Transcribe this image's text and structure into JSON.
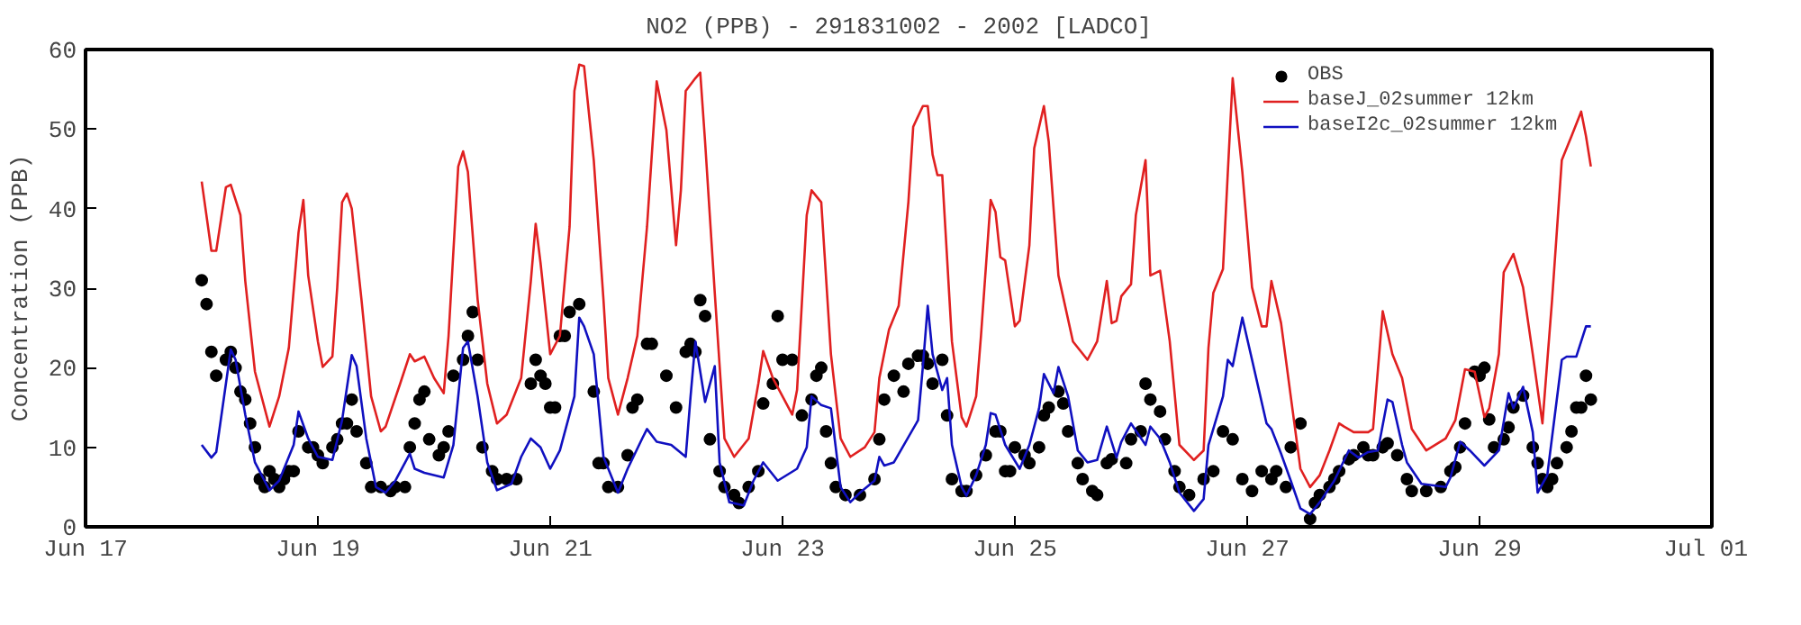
{
  "chart_data": {
    "type": "line",
    "title": "NO2 (PPB) - 291831002 - 2002 [LADCO]",
    "ylabel": "Concentration (PPB)",
    "xlim": [
      "2002-06-17",
      "2002-07-01"
    ],
    "xticks": [
      {
        "value": "2002-06-17",
        "label": "Jun 17"
      },
      {
        "value": "2002-06-19",
        "label": "Jun 19"
      },
      {
        "value": "2002-06-21",
        "label": "Jun 21"
      },
      {
        "value": "2002-06-23",
        "label": "Jun 23"
      },
      {
        "value": "2002-06-25",
        "label": "Jun 25"
      },
      {
        "value": "2002-06-27",
        "label": "Jun 27"
      },
      {
        "value": "2002-06-29",
        "label": "Jun 29"
      },
      {
        "value": "2002-07-01",
        "label": "Jul 01"
      }
    ],
    "ylim": [
      0,
      60
    ],
    "yticks": [
      0,
      10,
      20,
      30,
      40,
      50,
      60
    ],
    "legend": "top right",
    "line_style": "solid",
    "series": [
      {
        "name": "OBS",
        "type": "scatter",
        "marker": "circle",
        "color": "#000000",
        "x": [
          "2002-06-18T00:00",
          "2002-06-18T01:00",
          "2002-06-18T02:00",
          "2002-06-18T03:00",
          "2002-06-18T05:00",
          "2002-06-18T06:00",
          "2002-06-18T07:00",
          "2002-06-18T08:00",
          "2002-06-18T09:00",
          "2002-06-18T10:00",
          "2002-06-18T11:00",
          "2002-06-18T12:00",
          "2002-06-18T13:00",
          "2002-06-18T14:00",
          "2002-06-18T15:00",
          "2002-06-18T16:00",
          "2002-06-18T17:00",
          "2002-06-18T18:00",
          "2002-06-18T19:00",
          "2002-06-18T20:00",
          "2002-06-18T22:00",
          "2002-06-18T23:00",
          "2002-06-19T00:00",
          "2002-06-19T01:00",
          "2002-06-19T03:00",
          "2002-06-19T04:00",
          "2002-06-19T05:00",
          "2002-06-19T06:00",
          "2002-06-19T07:00",
          "2002-06-19T08:00",
          "2002-06-19T10:00",
          "2002-06-19T11:00",
          "2002-06-19T13:00",
          "2002-06-19T15:00",
          "2002-06-19T16:00",
          "2002-06-19T18:00",
          "2002-06-19T19:00",
          "2002-06-19T20:00",
          "2002-06-19T21:00",
          "2002-06-19T22:00",
          "2002-06-19T23:00",
          "2002-06-20T01:00",
          "2002-06-20T02:00",
          "2002-06-20T03:00",
          "2002-06-20T04:00",
          "2002-06-20T06:00",
          "2002-06-20T07:00",
          "2002-06-20T08:00",
          "2002-06-20T09:00",
          "2002-06-20T10:00",
          "2002-06-20T12:00",
          "2002-06-20T13:00",
          "2002-06-20T15:00",
          "2002-06-20T17:00",
          "2002-06-20T20:00",
          "2002-06-20T21:00",
          "2002-06-20T22:00",
          "2002-06-20T23:00",
          "2002-06-21T00:00",
          "2002-06-21T01:00",
          "2002-06-21T02:00",
          "2002-06-21T03:00",
          "2002-06-21T04:00",
          "2002-06-21T06:00",
          "2002-06-21T09:00",
          "2002-06-21T10:00",
          "2002-06-21T11:00",
          "2002-06-21T12:00",
          "2002-06-21T14:00",
          "2002-06-21T16:00",
          "2002-06-21T17:00",
          "2002-06-21T18:00",
          "2002-06-21T20:00",
          "2002-06-21T21:00",
          "2002-06-22T00:00",
          "2002-06-22T02:00",
          "2002-06-22T04:00",
          "2002-06-22T05:00",
          "2002-06-22T06:00",
          "2002-06-22T07:00",
          "2002-06-22T08:00",
          "2002-06-22T09:00",
          "2002-06-22T11:00",
          "2002-06-22T12:00",
          "2002-06-22T14:00",
          "2002-06-22T15:00",
          "2002-06-22T17:00",
          "2002-06-22T19:00",
          "2002-06-22T20:00",
          "2002-06-22T22:00",
          "2002-06-22T23:00",
          "2002-06-23T00:00",
          "2002-06-23T02:00",
          "2002-06-23T04:00",
          "2002-06-23T06:00",
          "2002-06-23T07:00",
          "2002-06-23T08:00",
          "2002-06-23T09:00",
          "2002-06-23T10:00",
          "2002-06-23T11:00",
          "2002-06-23T13:00",
          "2002-06-23T16:00",
          "2002-06-23T19:00",
          "2002-06-23T20:00",
          "2002-06-23T21:00",
          "2002-06-23T23:00",
          "2002-06-24T01:00",
          "2002-06-24T02:00",
          "2002-06-24T04:00",
          "2002-06-24T05:00",
          "2002-06-24T06:00",
          "2002-06-24T07:00",
          "2002-06-24T09:00",
          "2002-06-24T10:00",
          "2002-06-24T11:00",
          "2002-06-24T13:00",
          "2002-06-24T14:00",
          "2002-06-24T16:00",
          "2002-06-24T18:00",
          "2002-06-24T20:00",
          "2002-06-24T21:00",
          "2002-06-24T22:00",
          "2002-06-24T23:00",
          "2002-06-25T00:00",
          "2002-06-25T02:00",
          "2002-06-25T03:00",
          "2002-06-25T05:00",
          "2002-06-25T06:00",
          "2002-06-25T07:00",
          "2002-06-25T09:00",
          "2002-06-25T10:00",
          "2002-06-25T11:00",
          "2002-06-25T13:00",
          "2002-06-25T14:00",
          "2002-06-25T16:00",
          "2002-06-25T17:00",
          "2002-06-25T19:00",
          "2002-06-25T20:00",
          "2002-06-25T23:00",
          "2002-06-26T00:00",
          "2002-06-26T02:00",
          "2002-06-26T03:00",
          "2002-06-26T04:00",
          "2002-06-26T06:00",
          "2002-06-26T07:00",
          "2002-06-26T09:00",
          "2002-06-26T10:00",
          "2002-06-26T12:00",
          "2002-06-26T15:00",
          "2002-06-26T17:00",
          "2002-06-26T19:00",
          "2002-06-26T21:00",
          "2002-06-26T23:00",
          "2002-06-27T01:00",
          "2002-06-27T03:00",
          "2002-06-27T05:00",
          "2002-06-27T06:00",
          "2002-06-27T08:00",
          "2002-06-27T09:00",
          "2002-06-27T11:00",
          "2002-06-27T13:00",
          "2002-06-27T14:00",
          "2002-06-27T15:00",
          "2002-06-27T17:00",
          "2002-06-27T18:00",
          "2002-06-27T19:00",
          "2002-06-27T21:00",
          "2002-06-27T22:00",
          "2002-06-28T00:00",
          "2002-06-28T01:00",
          "2002-06-28T02:00",
          "2002-06-28T04:00",
          "2002-06-28T05:00",
          "2002-06-28T07:00",
          "2002-06-28T09:00",
          "2002-06-28T10:00",
          "2002-06-28T13:00",
          "2002-06-28T16:00",
          "2002-06-28T18:00",
          "2002-06-28T19:00",
          "2002-06-28T20:00",
          "2002-06-28T21:00",
          "2002-06-28T23:00",
          "2002-06-29T00:00",
          "2002-06-29T01:00",
          "2002-06-29T02:00",
          "2002-06-29T03:00",
          "2002-06-29T05:00",
          "2002-06-29T06:00",
          "2002-06-29T07:00",
          "2002-06-29T09:00",
          "2002-06-29T11:00",
          "2002-06-29T12:00",
          "2002-06-29T13:00",
          "2002-06-29T14:00",
          "2002-06-29T15:00",
          "2002-06-29T16:00",
          "2002-06-29T18:00",
          "2002-06-29T19:00",
          "2002-06-29T20:00",
          "2002-06-29T21:00",
          "2002-06-29T22:00",
          "2002-06-29T23:00"
        ],
        "values": [
          31,
          28,
          22,
          19,
          21,
          22,
          20,
          17,
          16,
          13,
          10,
          6,
          5,
          7,
          6,
          5,
          6,
          7,
          7,
          12,
          10,
          10,
          9,
          8,
          10,
          11,
          13,
          13,
          16,
          12,
          8,
          5,
          5,
          4.5,
          5,
          5,
          10,
          13,
          16,
          17,
          11,
          9,
          10,
          12,
          19,
          21,
          24,
          27,
          21,
          10,
          7,
          6,
          6,
          6,
          18,
          21,
          19,
          18,
          15,
          15,
          24,
          24,
          27,
          28,
          17,
          8,
          8,
          5,
          5,
          9,
          15,
          16,
          23,
          23,
          19,
          15,
          22,
          23,
          22,
          28.5,
          26.5,
          11,
          7,
          5,
          4,
          3,
          5,
          7,
          15.5,
          18,
          26.5,
          21,
          21,
          14,
          16,
          19,
          20,
          12,
          8,
          5,
          4,
          4,
          6,
          11,
          16,
          19,
          17,
          20.5,
          21.5,
          21.5,
          20.5,
          18,
          21,
          14,
          6,
          4.5,
          4.5,
          6.5,
          9,
          12,
          12,
          7,
          7,
          10,
          9,
          8,
          10,
          14,
          15,
          17,
          15.5,
          12,
          8,
          6,
          4.5,
          4,
          8,
          8.5,
          8,
          11,
          12,
          18,
          16,
          14.5,
          11,
          7,
          5,
          4,
          6,
          7,
          12,
          11,
          6,
          4.5,
          7,
          6,
          7,
          5,
          10,
          13,
          1,
          3,
          4,
          5,
          6,
          7,
          8.5,
          9,
          10,
          9,
          9,
          10,
          10.5,
          9,
          6,
          4.5,
          4.5,
          5,
          7,
          7.5,
          10,
          13,
          19.5,
          19,
          20,
          13.5,
          10,
          11,
          12.5,
          15,
          16.5,
          10,
          8,
          6,
          5,
          6,
          8,
          10,
          12,
          15,
          15,
          19,
          16
        ]
      },
      {
        "name": "baseJ_02summer 12km",
        "color": "#e02020",
        "x": [
          "2002-06-18T00:00",
          "2002-06-18T02:00",
          "2002-06-18T03:00",
          "2002-06-18T05:00",
          "2002-06-18T06:00",
          "2002-06-18T08:00",
          "2002-06-18T09:00",
          "2002-06-18T11:00",
          "2002-06-18T14:00",
          "2002-06-18T16:00",
          "2002-06-18T18:00",
          "2002-06-18T20:00",
          "2002-06-18T21:00",
          "2002-06-18T22:00",
          "2002-06-19T00:00",
          "2002-06-19T01:00",
          "2002-06-19T03:00",
          "2002-06-19T04:00",
          "2002-06-19T05:00",
          "2002-06-19T06:00",
          "2002-06-19T07:00",
          "2002-06-19T09:00",
          "2002-06-19T11:00",
          "2002-06-19T13:00",
          "2002-06-19T14:00",
          "2002-06-19T17:00",
          "2002-06-19T19:00",
          "2002-06-19T20:00",
          "2002-06-19T22:00",
          "2002-06-20T00:00",
          "2002-06-20T02:00",
          "2002-06-20T03:00",
          "2002-06-20T05:00",
          "2002-06-20T06:00",
          "2002-06-20T07:00",
          "2002-06-20T09:00",
          "2002-06-20T11:00",
          "2002-06-20T13:00",
          "2002-06-20T15:00",
          "2002-06-20T18:00",
          "2002-06-20T20:00",
          "2002-06-20T21:00",
          "2002-06-20T22:00",
          "2002-06-21T00:00",
          "2002-06-21T02:00",
          "2002-06-21T04:00",
          "2002-06-21T05:00",
          "2002-06-21T06:00",
          "2002-06-21T07:00",
          "2002-06-21T09:00",
          "2002-06-21T11:00",
          "2002-06-21T12:00",
          "2002-06-21T14:00",
          "2002-06-21T16:00",
          "2002-06-21T18:00",
          "2002-06-21T20:00",
          "2002-06-21T22:00",
          "2002-06-22T00:00",
          "2002-06-22T02:00",
          "2002-06-22T03:00",
          "2002-06-22T04:00",
          "2002-06-22T06:00",
          "2002-06-22T07:00",
          "2002-06-22T08:00",
          "2002-06-22T10:00",
          "2002-06-22T12:00",
          "2002-06-22T14:00",
          "2002-06-22T17:00",
          "2002-06-22T19:00",
          "2002-06-22T20:00",
          "2002-06-22T22:00",
          "2002-06-23T00:00",
          "2002-06-23T02:00",
          "2002-06-23T03:00",
          "2002-06-23T05:00",
          "2002-06-23T06:00",
          "2002-06-23T08:00",
          "2002-06-23T10:00",
          "2002-06-23T12:00",
          "2002-06-23T14:00",
          "2002-06-23T17:00",
          "2002-06-23T19:00",
          "2002-06-23T20:00",
          "2002-06-23T22:00",
          "2002-06-24T00:00",
          "2002-06-24T02:00",
          "2002-06-24T03:00",
          "2002-06-24T05:00",
          "2002-06-24T06:00",
          "2002-06-24T07:00",
          "2002-06-24T08:00",
          "2002-06-24T09:00",
          "2002-06-24T11:00",
          "2002-06-24T13:00",
          "2002-06-24T14:00",
          "2002-06-24T16:00",
          "2002-06-24T17:00",
          "2002-06-24T19:00",
          "2002-06-24T20:00",
          "2002-06-24T21:00",
          "2002-06-24T22:00",
          "2002-06-25T00:00",
          "2002-06-25T01:00",
          "2002-06-25T03:00",
          "2002-06-25T04:00",
          "2002-06-25T06:00",
          "2002-06-25T07:00",
          "2002-06-25T09:00",
          "2002-06-25T12:00",
          "2002-06-25T15:00",
          "2002-06-25T17:00",
          "2002-06-25T19:00",
          "2002-06-25T20:00",
          "2002-06-25T21:00",
          "2002-06-25T22:00",
          "2002-06-26T00:00",
          "2002-06-26T01:00",
          "2002-06-26T03:00",
          "2002-06-26T04:00",
          "2002-06-26T06:00",
          "2002-06-26T08:00",
          "2002-06-26T10:00",
          "2002-06-26T13:00",
          "2002-06-26T15:00",
          "2002-06-26T16:00",
          "2002-06-26T17:00",
          "2002-06-26T19:00",
          "2002-06-26T20:00",
          "2002-06-26T21:00",
          "2002-06-26T23:00",
          "2002-06-27T01:00",
          "2002-06-27T03:00",
          "2002-06-27T04:00",
          "2002-06-27T05:00",
          "2002-06-27T07:00",
          "2002-06-27T09:00",
          "2002-06-27T11:00",
          "2002-06-27T13:00",
          "2002-06-27T15:00",
          "2002-06-27T17:00",
          "2002-06-27T19:00",
          "2002-06-27T20:00",
          "2002-06-27T22:00",
          "2002-06-28T01:00",
          "2002-06-28T02:00",
          "2002-06-28T04:00",
          "2002-06-28T06:00",
          "2002-06-28T08:00",
          "2002-06-28T10:00",
          "2002-06-28T13:00",
          "2002-06-28T17:00",
          "2002-06-28T19:00",
          "2002-06-28T21:00",
          "2002-06-28T23:00",
          "2002-06-29T01:00",
          "2002-06-29T02:00",
          "2002-06-29T04:00",
          "2002-06-29T05:00",
          "2002-06-29T07:00",
          "2002-06-29T09:00",
          "2002-06-29T11:00",
          "2002-06-29T13:00",
          "2002-06-29T15:00",
          "2002-06-29T17:00",
          "2002-06-29T19:00",
          "2002-06-29T21:00",
          "2002-06-29T22:00",
          "2002-06-29T23:00"
        ],
        "values": [
          43.4,
          34.7,
          34.7,
          42.7,
          43,
          39.2,
          30.9,
          19.5,
          12.6,
          16.4,
          22.5,
          37,
          41.1,
          31.6,
          23.3,
          20.1,
          21.4,
          30.1,
          40.8,
          41.9,
          40,
          28.6,
          16.4,
          12,
          12.6,
          18,
          21.7,
          20.8,
          21.4,
          18.7,
          16.8,
          24,
          45.3,
          47.2,
          44.6,
          28.6,
          18,
          13,
          14.1,
          18.7,
          30.9,
          38.1,
          33.2,
          21.7,
          24,
          37.7,
          54.8,
          58.1,
          57.9,
          46.1,
          28.6,
          18.7,
          14.1,
          18.7,
          24,
          37.7,
          56,
          49.9,
          35.4,
          42.3,
          54.8,
          56.4,
          57.1,
          48.4,
          29.4,
          11.1,
          8.8,
          11.1,
          18,
          22.1,
          18.7,
          16.4,
          14.1,
          17.2,
          39.2,
          42.3,
          40.8,
          21.7,
          11.1,
          8.8,
          10,
          11.9,
          18.7,
          24.8,
          27.8,
          40.8,
          50.3,
          52.9,
          52.9,
          46.8,
          44.2,
          44.2,
          23.3,
          13.8,
          12.6,
          16.4,
          24,
          41.1,
          39.6,
          33.9,
          33.5,
          25.2,
          25.9,
          35.4,
          47.6,
          52.9,
          48.4,
          31.6,
          23.3,
          21,
          23.3,
          30.9,
          25.6,
          25.9,
          29,
          30.5,
          39.2,
          46.1,
          31.6,
          32.2,
          23.3,
          10.3,
          8.4,
          9.6,
          22.5,
          29.4,
          32.4,
          44.6,
          56.4,
          44.6,
          30.1,
          25.2,
          25.2,
          30.9,
          25.6,
          16.4,
          7.3,
          5,
          6.5,
          9.6,
          13,
          12.6,
          11.9,
          11.9,
          12.3,
          27.1,
          21.7,
          18.7,
          12.3,
          9.6,
          11.1,
          13.4,
          19.8,
          19.5,
          13.8,
          14.9,
          21.7,
          32,
          34.3,
          30.1,
          21.7,
          13,
          28.6,
          46.1,
          49.1,
          52.2,
          49.1,
          45.3
        ]
      },
      {
        "name": "baseI2c_02summer 12km",
        "color": "#1010c0",
        "x": [
          "2002-06-18T00:00",
          "2002-06-18T02:00",
          "2002-06-18T03:00",
          "2002-06-18T05:00",
          "2002-06-18T06:00",
          "2002-06-18T07:00",
          "2002-06-18T09:00",
          "2002-06-18T11:00",
          "2002-06-18T14:00",
          "2002-06-18T16:00",
          "2002-06-18T19:00",
          "2002-06-18T20:00",
          "2002-06-18T22:00",
          "2002-06-19T00:00",
          "2002-06-19T03:00",
          "2002-06-19T05:00",
          "2002-06-19T07:00",
          "2002-06-19T08:00",
          "2002-06-19T10:00",
          "2002-06-19T12:00",
          "2002-06-19T14:00",
          "2002-06-19T16:00",
          "2002-06-19T19:00",
          "2002-06-19T20:00",
          "2002-06-19T22:00",
          "2002-06-20T02:00",
          "2002-06-20T04:00",
          "2002-06-20T06:00",
          "2002-06-20T07:00",
          "2002-06-20T09:00",
          "2002-06-20T11:00",
          "2002-06-20T13:00",
          "2002-06-20T16:00",
          "2002-06-20T18:00",
          "2002-06-20T20:00",
          "2002-06-20T22:00",
          "2002-06-21T00:00",
          "2002-06-21T02:00",
          "2002-06-21T05:00",
          "2002-06-21T06:00",
          "2002-06-21T07:00",
          "2002-06-21T09:00",
          "2002-06-21T11:00",
          "2002-06-21T14:00",
          "2002-06-21T16:00",
          "2002-06-21T19:00",
          "2002-06-21T20:00",
          "2002-06-21T22:00",
          "2002-06-22T01:00",
          "2002-06-22T04:00",
          "2002-06-22T05:00",
          "2002-06-22T06:00",
          "2002-06-22T08:00",
          "2002-06-22T10:00",
          "2002-06-22T11:00",
          "2002-06-22T13:00",
          "2002-06-22T16:00",
          "2002-06-22T18:00",
          "2002-06-22T20:00",
          "2002-06-22T23:00",
          "2002-06-23T03:00",
          "2002-06-23T05:00",
          "2002-06-23T06:00",
          "2002-06-23T08:00",
          "2002-06-23T10:00",
          "2002-06-23T12:00",
          "2002-06-23T14:00",
          "2002-06-23T16:00",
          "2002-06-23T19:00",
          "2002-06-23T20:00",
          "2002-06-23T21:00",
          "2002-06-23T23:00",
          "2002-06-24T04:00",
          "2002-06-24T05:00",
          "2002-06-24T06:00",
          "2002-06-24T07:00",
          "2002-06-24T09:00",
          "2002-06-24T10:00",
          "2002-06-24T11:00",
          "2002-06-24T13:00",
          "2002-06-24T14:00",
          "2002-06-24T16:00",
          "2002-06-24T18:00",
          "2002-06-24T19:00",
          "2002-06-24T20:00",
          "2002-06-24T22:00",
          "2002-06-25T01:00",
          "2002-06-25T03:00",
          "2002-06-25T05:00",
          "2002-06-25T06:00",
          "2002-06-25T08:00",
          "2002-06-25T09:00",
          "2002-06-25T11:00",
          "2002-06-25T13:00",
          "2002-06-25T15:00",
          "2002-06-25T17:00",
          "2002-06-25T19:00",
          "2002-06-25T21:00",
          "2002-06-25T22:00",
          "2002-06-26T00:00",
          "2002-06-26T03:00",
          "2002-06-26T04:00",
          "2002-06-26T06:00",
          "2002-06-26T08:00",
          "2002-06-26T10:00",
          "2002-06-26T13:00",
          "2002-06-26T15:00",
          "2002-06-26T16:00",
          "2002-06-26T19:00",
          "2002-06-26T20:00",
          "2002-06-26T21:00",
          "2002-06-26T23:00",
          "2002-06-27T01:00",
          "2002-06-27T04:00",
          "2002-06-27T05:00",
          "2002-06-27T07:00",
          "2002-06-27T09:00",
          "2002-06-27T11:00",
          "2002-06-27T13:00",
          "2002-06-27T15:00",
          "2002-06-27T18:00",
          "2002-06-27T21:00",
          "2002-06-27T23:00",
          "2002-06-28T01:00",
          "2002-06-28T03:00",
          "2002-06-28T05:00",
          "2002-06-28T06:00",
          "2002-06-28T08:00",
          "2002-06-28T09:00",
          "2002-06-28T12:00",
          "2002-06-28T17:00",
          "2002-06-28T18:00",
          "2002-06-28T20:00",
          "2002-06-28T22:00",
          "2002-06-29T01:00",
          "2002-06-29T04:00",
          "2002-06-29T06:00",
          "2002-06-29T07:00",
          "2002-06-29T09:00",
          "2002-06-29T11:00",
          "2002-06-29T12:00",
          "2002-06-29T14:00",
          "2002-06-29T17:00",
          "2002-06-29T18:00",
          "2002-06-29T20:00",
          "2002-06-29T22:00",
          "2002-06-29T23:00"
        ],
        "values": [
          10.3,
          8.7,
          9.4,
          18,
          22.3,
          21,
          14.1,
          8.1,
          4.6,
          5.8,
          10.3,
          14.5,
          11.1,
          8.8,
          8.4,
          13.4,
          21.6,
          20.2,
          11.1,
          5,
          4.3,
          5.8,
          9.2,
          7.3,
          6.8,
          6.2,
          10.3,
          22.5,
          23.3,
          16.4,
          8.1,
          4.6,
          5.4,
          8.8,
          11.1,
          10,
          7.3,
          9.6,
          16.4,
          26.3,
          25.2,
          21.7,
          8.8,
          4.3,
          7.3,
          11.1,
          12.3,
          10.7,
          10.3,
          8.8,
          16.4,
          23.3,
          15.7,
          20.2,
          8.1,
          3.1,
          2.7,
          5.8,
          8.1,
          5.8,
          7.3,
          10,
          16.4,
          15.3,
          14.9,
          5,
          3.1,
          4.3,
          5.8,
          8.8,
          7.7,
          8.1,
          13.4,
          20.2,
          27.8,
          21.7,
          17.2,
          18.7,
          10.3,
          5,
          3.9,
          6.5,
          10.3,
          14.3,
          14.1,
          10.3,
          7.3,
          10.3,
          14.9,
          19.2,
          16.8,
          20.1,
          16.4,
          9.6,
          8.1,
          8.4,
          12.6,
          8.7,
          10.7,
          13,
          10.3,
          12.6,
          11.1,
          8.1,
          4.3,
          2,
          3.5,
          10.3,
          16.4,
          21,
          20.2,
          26.3,
          21,
          13,
          12.3,
          9.2,
          5.8,
          2.3,
          1.6,
          3.1,
          5.8,
          9.6,
          8.7,
          9.4,
          9.6,
          16,
          15.7,
          10.3,
          8.1,
          5.4,
          5,
          6.2,
          10.7,
          9.6,
          7.7,
          9.6,
          16.8,
          14.9,
          17.6,
          11.9,
          4.3,
          6.5,
          21,
          21.4,
          21.4,
          25.2,
          25.2
        ]
      }
    ]
  }
}
